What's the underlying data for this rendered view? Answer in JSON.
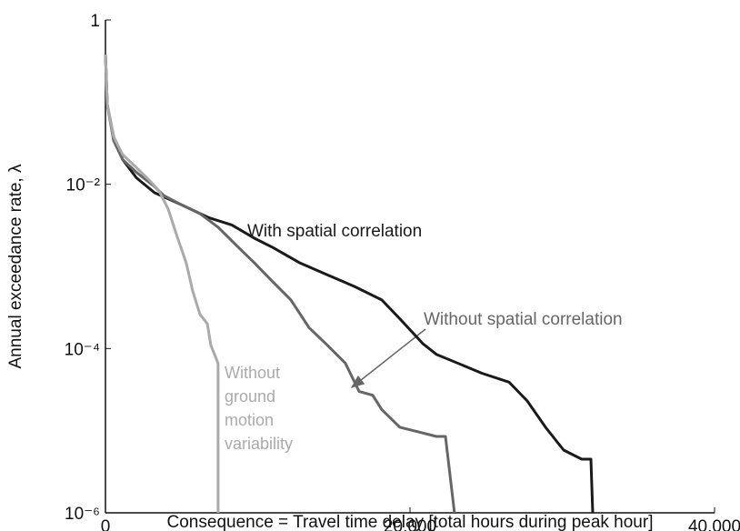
{
  "chart_data": {
    "type": "line",
    "x_label": "Consequence = Travel time delay [total hours during peak hour]",
    "y_label": "Annual exceedance rate, λ",
    "yscale": "log",
    "xlim": [
      0,
      40000
    ],
    "ylim": [
      1e-06,
      1
    ],
    "xticks": [
      0,
      {
        "value": 20000,
        "label": "20,000"
      },
      {
        "value": 40000,
        "label": "40,000"
      }
    ],
    "yticks": [
      {
        "value": 1e-06,
        "label": "10⁻⁶"
      },
      {
        "value": 0.0001,
        "label": "10⁻⁴"
      },
      {
        "value": 0.01,
        "label": "10⁻²"
      },
      1
    ],
    "series": [
      {
        "name": "With spatial correlation",
        "color": "#1a1a1a",
        "x": [
          0,
          120,
          540,
          1130,
          2030,
          3220,
          5010,
          6810,
          8300,
          9790,
          10990,
          12780,
          14570,
          16360,
          18150,
          19340,
          20840,
          21730,
          23520,
          24720,
          26510,
          27700,
          28900,
          30090,
          31280,
          31880,
          32000
        ],
        "values": [
          0.38,
          0.093,
          0.038,
          0.02,
          0.012,
          0.0079,
          0.0056,
          0.0039,
          0.0032,
          0.0022,
          0.0017,
          0.0011,
          0.00079,
          0.00057,
          0.00039,
          0.00023,
          0.000115,
          8.5e-05,
          6.2e-05,
          5e-05,
          3.9e-05,
          2.3e-05,
          1.1e-05,
          5.8e-06,
          4.5e-06,
          4.5e-06,
          1e-06
        ]
      },
      {
        "name": "Without spatial correlation",
        "color": "#666666",
        "x": [
          0,
          120,
          540,
          1130,
          2030,
          3220,
          3820,
          5010,
          6210,
          7400,
          8600,
          9790,
          10990,
          12180,
          13370,
          14570,
          15760,
          16660,
          17550,
          18150,
          19340,
          20540,
          21730,
          22330,
          22920
        ],
        "values": [
          0.38,
          0.093,
          0.034,
          0.02,
          0.014,
          0.0094,
          0.0073,
          0.0056,
          0.0044,
          0.003,
          0.0018,
          0.0011,
          0.00065,
          0.00039,
          0.00018,
          0.00011,
          6.6e-05,
          3e-05,
          2.7e-05,
          1.8e-05,
          1.1e-05,
          9.7e-06,
          8.5e-06,
          8.5e-06,
          1e-06
        ]
      },
      {
        "name": "Without ground motion variability",
        "color": "#aaaaaa",
        "x": [
          0,
          120,
          540,
          1130,
          2030,
          2920,
          3520,
          4120,
          4710,
          5310,
          5730,
          6210,
          6690,
          6920,
          7400,
          7400
        ],
        "values": [
          0.38,
          0.093,
          0.038,
          0.023,
          0.016,
          0.011,
          0.0083,
          0.005,
          0.0023,
          0.0011,
          0.0005,
          0.00026,
          0.0002,
          0.00011,
          6.6e-05,
          1e-06
        ]
      }
    ]
  }
}
